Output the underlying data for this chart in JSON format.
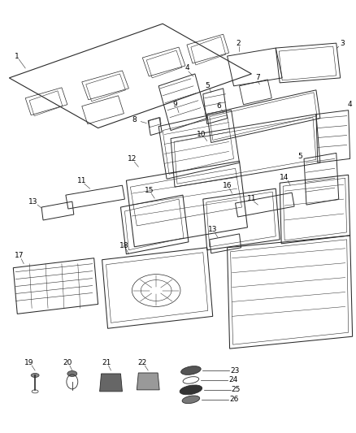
{
  "bg_color": "#ffffff",
  "line_color": "#2a2a2a",
  "label_color": "#000000",
  "fig_width": 4.38,
  "fig_height": 5.33,
  "dpi": 100,
  "label_fontsize": 6.5,
  "lw": 0.65
}
